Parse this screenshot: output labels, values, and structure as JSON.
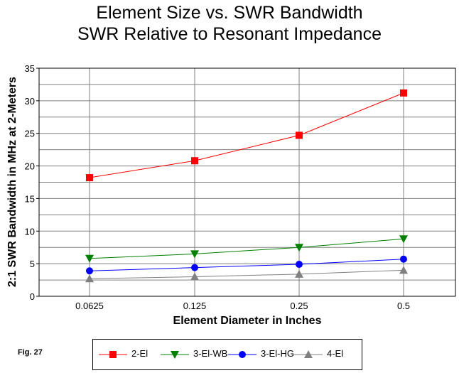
{
  "chart_data": {
    "type": "line",
    "title": "Element Size vs. SWR Bandwidth",
    "subtitle": "SWR Relative to Resonant Impedance",
    "xlabel": "Element Diameter in Inches",
    "ylabel": "2:1 SWR Bandwidth in MHz at 2-Meters",
    "categories": [
      "0.0625",
      "0.125",
      "0.25",
      "0.5"
    ],
    "ylim": [
      0,
      35
    ],
    "yticks": [
      "0",
      "5",
      "10",
      "15",
      "20",
      "25",
      "30",
      "35"
    ],
    "grid": true,
    "legend_position": "bottom",
    "series": [
      {
        "name": "2-El",
        "color": "#ff0000",
        "marker": "square",
        "values": [
          18.2,
          20.8,
          24.7,
          31.2
        ]
      },
      {
        "name": "3-El-WB",
        "color": "#008000",
        "marker": "triangle-down",
        "values": [
          5.8,
          6.5,
          7.5,
          8.8
        ]
      },
      {
        "name": "3-El-HG",
        "color": "#0000ff",
        "marker": "circle",
        "values": [
          3.9,
          4.4,
          4.9,
          5.7
        ]
      },
      {
        "name": "4-El",
        "color": "#808080",
        "marker": "triangle-up",
        "values": [
          2.7,
          3.0,
          3.4,
          4.0
        ]
      }
    ]
  },
  "figure_label": "Fig. 27"
}
